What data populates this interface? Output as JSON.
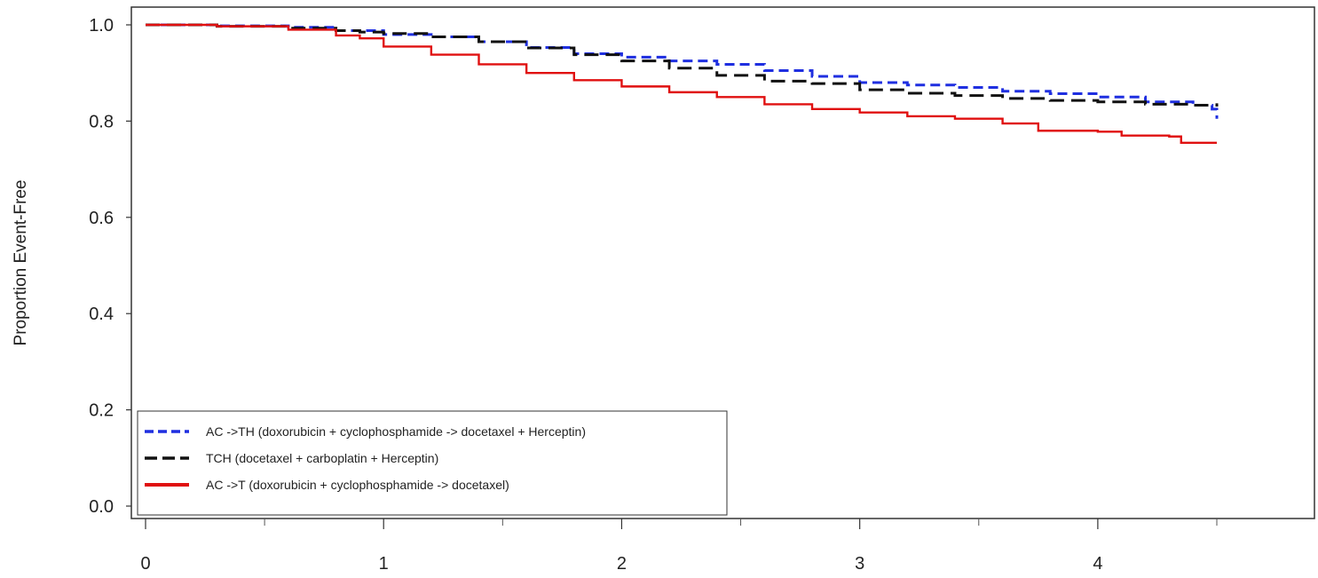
{
  "chart_data": {
    "type": "line",
    "title": "",
    "xlabel": "",
    "ylabel": "Proportion Event-Free",
    "xlim": [
      0,
      4.5
    ],
    "ylim": [
      0.0,
      1.0
    ],
    "x_ticks": [
      0,
      1,
      2,
      3,
      4
    ],
    "x_tick_labels": [
      "0",
      "1",
      "2",
      "3",
      "4"
    ],
    "x_minor_ticks": [
      0.5,
      1.5,
      2.5,
      3.5,
      4.5
    ],
    "y_ticks": [
      0.0,
      0.2,
      0.4,
      0.6,
      0.8,
      1.0
    ],
    "y_tick_labels": [
      "0.0",
      "0.2",
      "0.4",
      "0.6",
      "0.8",
      "1.0"
    ],
    "grid": false,
    "legend_position": "bottom-left",
    "series": [
      {
        "name": "AC ->TH (doxorubicin + cyclophosphamide -> docetaxel + Herceptin)",
        "color": "#1f2fe0",
        "dash": "dashed",
        "x": [
          0,
          0.3,
          0.6,
          0.8,
          1.0,
          1.2,
          1.4,
          1.6,
          1.8,
          2.0,
          2.2,
          2.4,
          2.6,
          2.8,
          3.0,
          3.2,
          3.4,
          3.6,
          3.8,
          4.0,
          4.2,
          4.4,
          4.48,
          4.5
        ],
        "y": [
          1.0,
          0.998,
          0.995,
          0.988,
          0.98,
          0.975,
          0.965,
          0.953,
          0.94,
          0.933,
          0.925,
          0.918,
          0.905,
          0.893,
          0.88,
          0.875,
          0.87,
          0.862,
          0.857,
          0.85,
          0.84,
          0.833,
          0.825,
          0.805
        ]
      },
      {
        "name": "TCH (docetaxel + carboplatin + Herceptin)",
        "color": "#111111",
        "dash": "longdash",
        "x": [
          0,
          0.3,
          0.6,
          0.8,
          0.9,
          1.0,
          1.2,
          1.4,
          1.6,
          1.8,
          2.0,
          2.2,
          2.4,
          2.6,
          2.8,
          3.0,
          3.2,
          3.4,
          3.6,
          3.8,
          4.0,
          4.2,
          4.4,
          4.5
        ],
        "y": [
          1.0,
          0.997,
          0.993,
          0.988,
          0.985,
          0.982,
          0.975,
          0.965,
          0.952,
          0.938,
          0.925,
          0.91,
          0.895,
          0.883,
          0.878,
          0.865,
          0.858,
          0.853,
          0.847,
          0.843,
          0.84,
          0.835,
          0.833,
          0.837
        ]
      },
      {
        "name": "AC ->T (doxorubicin + cyclophosphamide -> docetaxel)",
        "color": "#e01010",
        "dash": "solid",
        "x": [
          0,
          0.3,
          0.6,
          0.8,
          0.9,
          1.0,
          1.2,
          1.4,
          1.6,
          1.8,
          2.0,
          2.2,
          2.4,
          2.6,
          2.8,
          3.0,
          3.2,
          3.4,
          3.6,
          3.75,
          4.0,
          4.1,
          4.3,
          4.35,
          4.5
        ],
        "y": [
          1.0,
          0.997,
          0.99,
          0.978,
          0.972,
          0.955,
          0.938,
          0.918,
          0.9,
          0.885,
          0.872,
          0.86,
          0.85,
          0.835,
          0.825,
          0.818,
          0.81,
          0.805,
          0.795,
          0.78,
          0.778,
          0.77,
          0.768,
          0.755,
          0.755
        ]
      }
    ]
  }
}
